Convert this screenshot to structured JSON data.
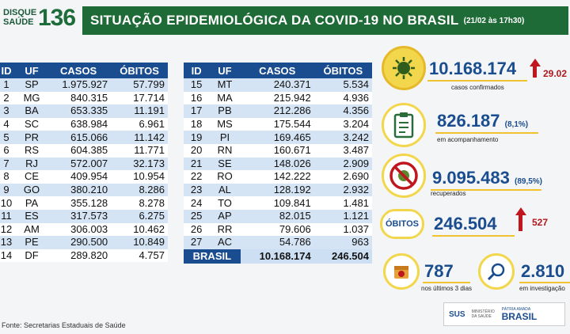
{
  "header": {
    "logo_text": "DISQUE SAÚDE",
    "logo_number": "136",
    "title": "SITUAÇÃO EPIDEMIOLÓGICA DA COVID-19 NO BRASIL",
    "date": "(21/02 às 17h30)"
  },
  "table": {
    "columns": [
      "ID",
      "UF",
      "CASOS",
      "ÓBITOS"
    ],
    "left_rows": [
      [
        "1",
        "SP",
        "1.975.927",
        "57.799"
      ],
      [
        "2",
        "MG",
        "840.315",
        "17.714"
      ],
      [
        "3",
        "BA",
        "653.335",
        "11.191"
      ],
      [
        "4",
        "SC",
        "638.984",
        "6.961"
      ],
      [
        "5",
        "PR",
        "615.066",
        "11.142"
      ],
      [
        "6",
        "RS",
        "604.385",
        "11.771"
      ],
      [
        "7",
        "RJ",
        "572.007",
        "32.173"
      ],
      [
        "8",
        "CE",
        "409.954",
        "10.954"
      ],
      [
        "9",
        "GO",
        "380.210",
        "8.286"
      ],
      [
        "10",
        "PA",
        "355.128",
        "8.278"
      ],
      [
        "11",
        "ES",
        "317.573",
        "6.275"
      ],
      [
        "12",
        "AM",
        "306.003",
        "10.462"
      ],
      [
        "13",
        "PE",
        "290.500",
        "10.849"
      ],
      [
        "14",
        "DF",
        "289.820",
        "4.757"
      ]
    ],
    "right_rows": [
      [
        "15",
        "MT",
        "240.371",
        "5.534"
      ],
      [
        "16",
        "MA",
        "215.942",
        "4.936"
      ],
      [
        "17",
        "PB",
        "212.286",
        "4.356"
      ],
      [
        "18",
        "MS",
        "175.544",
        "3.204"
      ],
      [
        "19",
        "PI",
        "169.465",
        "3.242"
      ],
      [
        "20",
        "RN",
        "160.671",
        "3.487"
      ],
      [
        "21",
        "SE",
        "148.026",
        "2.909"
      ],
      [
        "22",
        "RO",
        "142.222",
        "2.690"
      ],
      [
        "23",
        "AL",
        "128.192",
        "2.932"
      ],
      [
        "24",
        "TO",
        "109.841",
        "1.481"
      ],
      [
        "25",
        "AP",
        "82.015",
        "1.121"
      ],
      [
        "26",
        "RR",
        "79.606",
        "1.037"
      ],
      [
        "27",
        "AC",
        "54.786",
        "963"
      ]
    ],
    "total": {
      "label": "BRASIL",
      "casos": "10.168.174",
      "obitos": "246.504"
    }
  },
  "stats": {
    "confirmed": {
      "value": "10.168.174",
      "label": "casos confirmados",
      "increase": "29.02"
    },
    "monitoring": {
      "value": "826.187",
      "pct": "(8,1%)",
      "label": "em acompanhamento"
    },
    "recovered": {
      "value": "9.095.483",
      "pct": "(89,5%)",
      "label": "recuperados"
    },
    "deaths": {
      "pill": "ÓBITOS",
      "value": "246.504",
      "increase": "527"
    },
    "last3days": {
      "value": "787",
      "label": "nos últimos 3 dias"
    },
    "investigation": {
      "value": "2.810",
      "label": "em investigação"
    }
  },
  "footer": {
    "source": "Fonte: Secretarias Estaduais de Saúde"
  },
  "logos": {
    "sus": "SUS",
    "ministry": "MINISTÉRIO DA SAÚDE",
    "patria": "PÁTRIA AMADA",
    "brasil": "BRASIL"
  },
  "colors": {
    "green": "#1f6b37",
    "blue": "#1a4d8f",
    "yellow": "#f2d64b",
    "red": "#c0161e"
  }
}
